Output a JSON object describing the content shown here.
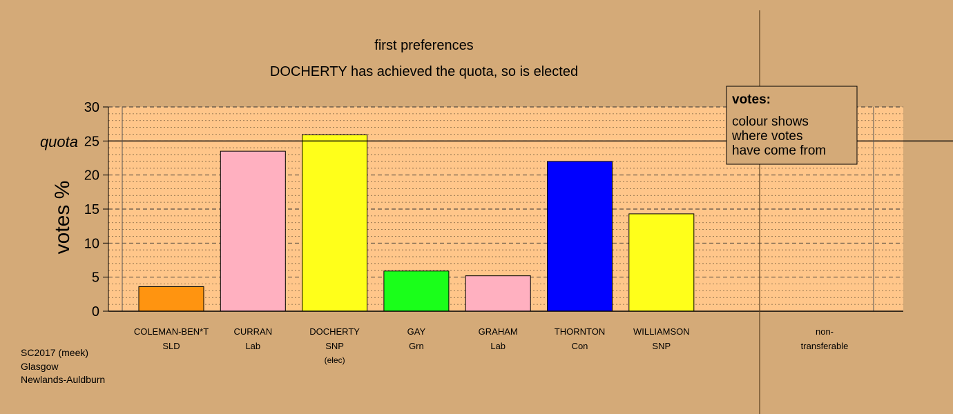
{
  "chart_data": {
    "type": "bar",
    "title": "first preferences",
    "subtitle": "DOCHERTY has achieved the quota, so is elected",
    "ylabel": "votes %",
    "ylim": [
      0,
      30
    ],
    "yticks": [
      "0",
      "5",
      "10",
      "15",
      "20",
      "25",
      "30"
    ],
    "quota_label": "quota",
    "quota_value": 25,
    "grid": true,
    "categories": [
      {
        "name": "COLEMAN-BEN*T",
        "party": "SLD",
        "value": 3.6,
        "color": "#ff9410",
        "note": ""
      },
      {
        "name": "CURRAN",
        "party": "Lab",
        "value": 23.5,
        "color": "#ffb0c0",
        "note": ""
      },
      {
        "name": "DOCHERTY",
        "party": "SNP",
        "value": 25.9,
        "color": "#ffff1a",
        "note": "(elec)"
      },
      {
        "name": "GAY",
        "party": "Grn",
        "value": 5.9,
        "color": "#1aff1a",
        "note": ""
      },
      {
        "name": "GRAHAM",
        "party": "Lab",
        "value": 5.2,
        "color": "#ffb0c0",
        "note": ""
      },
      {
        "name": "THORNTON",
        "party": "Con",
        "value": 22.0,
        "color": "#0000ff",
        "note": ""
      },
      {
        "name": "WILLIAMSON",
        "party": "SNP",
        "value": 14.3,
        "color": "#ffff1a",
        "note": ""
      }
    ],
    "nontransferable": {
      "line1": "non-",
      "line2": "transferable",
      "value": 0
    },
    "legend": {
      "position": "top-right",
      "title": "votes:",
      "lines": [
        "colour shows",
        "where votes",
        "have come from"
      ]
    }
  },
  "footer": {
    "line1": "SC2017 (meek)",
    "line2": "Glasgow",
    "line3": "Newlands-Auldburn"
  },
  "colors": {
    "background": "#d4aa78",
    "plot_area": "#ffc68a"
  }
}
